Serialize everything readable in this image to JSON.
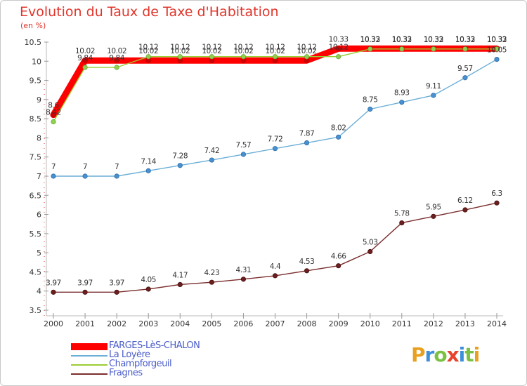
{
  "header": {
    "title": "Evolution du Taux de Taxe d'Habitation",
    "subtitle": "(en %)"
  },
  "logo": {
    "letters": [
      {
        "ch": "P",
        "color": "#e8a020"
      },
      {
        "ch": "r",
        "color": "#3c8fd8"
      },
      {
        "ch": "o",
        "color": "#7ac143"
      },
      {
        "ch": "x",
        "color": "#e8432c"
      },
      {
        "ch": "i",
        "color": "#3c8fd8"
      },
      {
        "ch": "t",
        "color": "#7ac143"
      },
      {
        "ch": "i",
        "color": "#e8a020"
      }
    ]
  },
  "chart_data": {
    "type": "line",
    "title": "Evolution du Taux de Taxe d'Habitation",
    "ylabel": "(en %)",
    "xlabel": "",
    "x": [
      "2000",
      "2001",
      "2002",
      "2003",
      "2004",
      "2005",
      "2006",
      "2007",
      "2008",
      "2009",
      "2010",
      "2011",
      "2012",
      "2013",
      "2014"
    ],
    "ylim": [
      3.5,
      10.5
    ],
    "yticks": [
      "3.5",
      "4",
      "4.5",
      "5",
      "5.5",
      "6",
      "6.5",
      "7",
      "7.5",
      "8",
      "8.5",
      "9",
      "9.5",
      "10",
      "10.5"
    ],
    "grid": false,
    "legend_position": "bottom-left",
    "series": [
      {
        "name": "FARGES-LèS-CHALON",
        "color": "#ff0000",
        "style": "thick",
        "values": [
          8.6,
          10.02,
          10.02,
          10.02,
          10.02,
          10.02,
          10.02,
          10.02,
          10.02,
          10.33,
          10.33,
          10.33,
          10.33,
          10.33,
          10.33
        ],
        "labels": [
          "8.6",
          "10.02",
          "10.02",
          "10.02",
          "10.02",
          "10.02",
          "10.02",
          "10.02",
          "10.02",
          "10.33",
          "10.33",
          "10.33",
          "10.33",
          "10.33",
          "10.33"
        ]
      },
      {
        "name": "La Loyère",
        "color": "#6baed6",
        "style": "thin",
        "values": [
          7,
          7,
          7,
          7.14,
          7.28,
          7.42,
          7.57,
          7.72,
          7.87,
          8.02,
          8.75,
          8.93,
          9.11,
          9.57,
          10.05
        ],
        "labels": [
          "7",
          "7",
          "7",
          "7.14",
          "7.28",
          "7.42",
          "7.57",
          "7.72",
          "7.87",
          "8.02",
          "8.75",
          "8.93",
          "9.11",
          "9.57",
          "10.05"
        ]
      },
      {
        "name": "Champforgeuil",
        "color": "#9acd32",
        "style": "thin",
        "values": [
          8.42,
          9.84,
          9.84,
          10.12,
          10.12,
          10.12,
          10.12,
          10.12,
          10.12,
          10.12,
          10.32,
          10.32,
          10.32,
          10.32,
          10.32
        ],
        "labels": [
          "8.42",
          "9.84",
          "9.84",
          "10.12",
          "10.12",
          "10.12",
          "10.12",
          "10.12",
          "10.12",
          "10.12",
          "10.32",
          "10.32",
          "10.32",
          "10.32",
          "10.32"
        ]
      },
      {
        "name": "Fragnes",
        "color": "#7b2d2d",
        "style": "thin",
        "values": [
          3.97,
          3.97,
          3.97,
          4.05,
          4.17,
          4.23,
          4.31,
          4.4,
          4.53,
          4.66,
          5.03,
          5.78,
          5.95,
          6.12,
          6.3
        ],
        "labels": [
          "3.97",
          "3.97",
          "3.97",
          "4.05",
          "4.17",
          "4.23",
          "4.31",
          "4.4",
          "4.53",
          "4.66",
          "5.03",
          "5.78",
          "5.95",
          "6.12",
          "6.3"
        ]
      }
    ]
  }
}
